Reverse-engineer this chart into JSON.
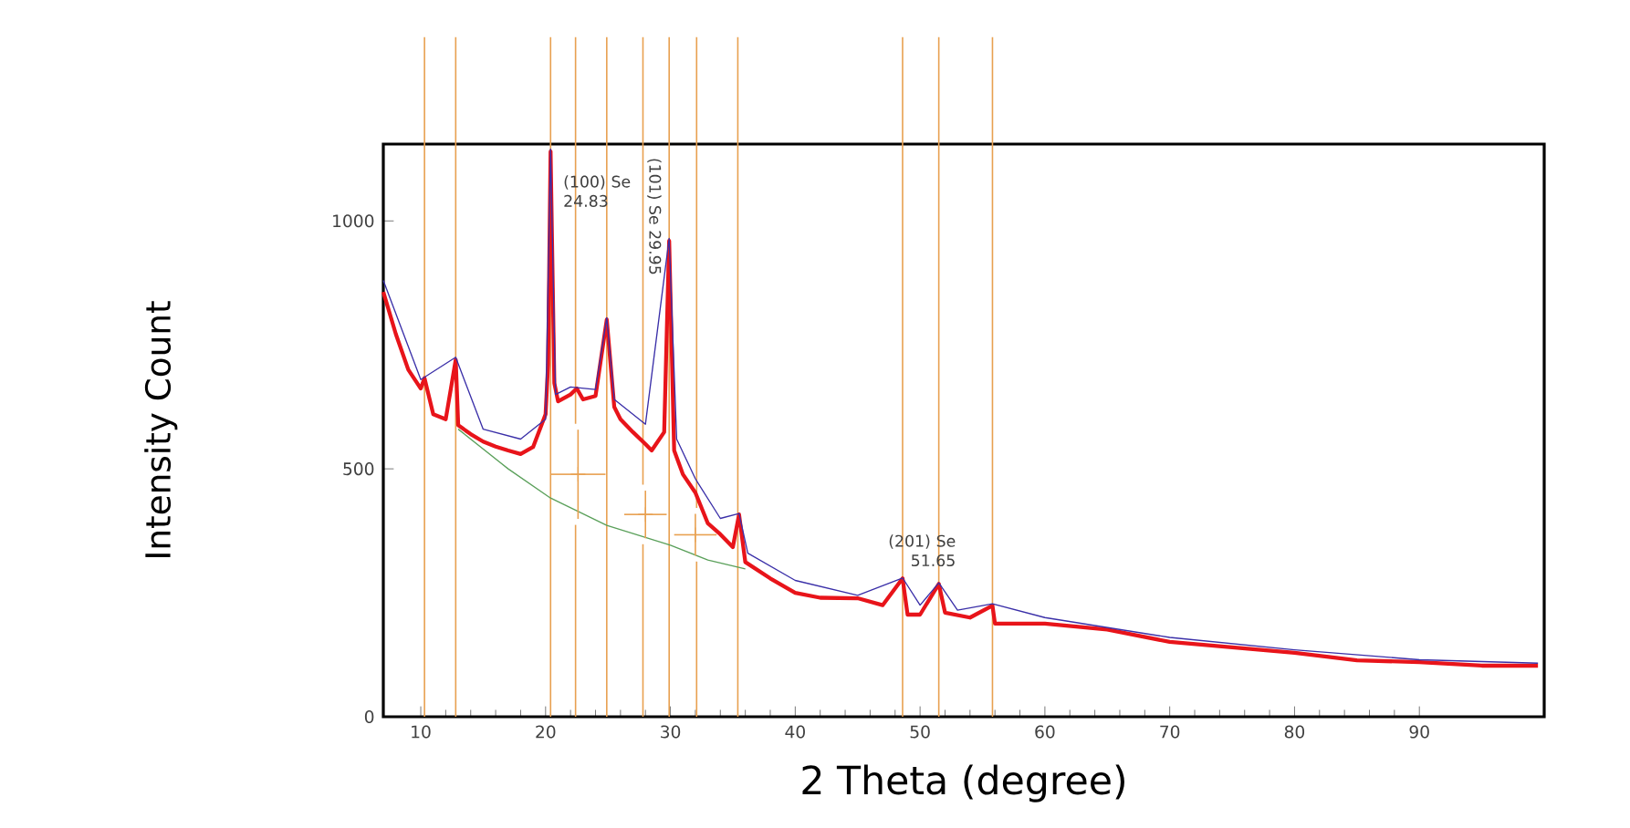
{
  "chart_data": {
    "type": "line",
    "xlabel": "2 Theta (degree)",
    "ylabel": "Intensity Count",
    "xlim": [
      7,
      100
    ],
    "ylim": [
      0,
      1155
    ],
    "xticks": [
      10,
      20,
      30,
      40,
      50,
      60,
      70,
      80,
      90
    ],
    "yticks": [
      0,
      500,
      1000
    ],
    "grid": false,
    "marker": "none",
    "line_style": "solid",
    "series": [
      {
        "color": "#e8141a",
        "x": [
          7,
          8,
          9,
          10,
          10.3,
          11,
          12,
          12.8,
          13,
          14,
          15,
          16,
          17,
          18,
          19,
          20,
          20.2,
          20.4,
          20.7,
          21,
          22,
          22.5,
          23,
          24,
          24.9,
          25.5,
          26,
          27,
          28,
          28.5,
          29.5,
          29.9,
          30.3,
          31,
          32,
          33,
          34,
          35,
          35.5,
          36,
          38,
          40,
          42,
          45,
          47,
          48.6,
          49,
          50,
          51.5,
          52,
          54,
          55.8,
          56,
          60,
          65,
          70,
          75,
          80,
          85,
          90,
          95,
          99.5
        ],
        "values": [
          857,
          772,
          700,
          662,
          683,
          610,
          600,
          720,
          588,
          570,
          555,
          545,
          537,
          530,
          544,
          610,
          710,
          1140,
          673,
          636,
          650,
          662,
          640,
          647,
          801,
          625,
          600,
          574,
          550,
          537,
          574,
          960,
          537,
          489,
          452,
          390,
          368,
          342,
          408,
          312,
          279,
          250,
          240,
          239,
          225,
          279,
          206,
          206,
          268,
          210,
          200,
          224,
          188,
          188,
          176,
          151,
          140,
          129,
          114,
          110,
          103,
          103
        ]
      },
      {
        "color": "#3a2fa8",
        "x": [
          7,
          10,
          12.8,
          15,
          18,
          20,
          20.4,
          20.8,
          22,
          24,
          24.9,
          25.5,
          28,
          29.9,
          30.5,
          32,
          34,
          35.5,
          36.2,
          40,
          45,
          48.6,
          50,
          51.5,
          53,
          55.8,
          60,
          70,
          80,
          90,
          99.5
        ],
        "values": [
          880,
          680,
          725,
          580,
          560,
          600,
          1145,
          650,
          665,
          660,
          805,
          640,
          590,
          965,
          560,
          480,
          400,
          410,
          330,
          275,
          245,
          280,
          225,
          270,
          215,
          228,
          200,
          160,
          135,
          115,
          108
        ]
      },
      {
        "color": "#5aa05a",
        "x": [
          13,
          17,
          20.4,
          24.9,
          30,
          33,
          36
        ],
        "values": [
          580,
          500,
          441,
          386,
          346,
          316,
          298
        ]
      },
      {
        "type": "scatter",
        "marker": "cross",
        "color": "#e8a050",
        "x": [
          22.6,
          28,
          32.0
        ],
        "values": [
          489,
          408,
          367
        ],
        "xerrors": [
          2.2,
          1.7,
          1.7
        ],
        "errors": [
          90,
          48,
          42
        ]
      }
    ],
    "ref_lines": [
      {
        "axis": "x",
        "value": 10.3,
        "color": "#e8a050"
      },
      {
        "axis": "x",
        "value": 12.8,
        "color": "#e8a050"
      },
      {
        "axis": "x",
        "value": 20.4,
        "color": "#e8a050"
      },
      {
        "axis": "x",
        "value": 22.4,
        "color": "#e8a050"
      },
      {
        "axis": "x",
        "value": 24.9,
        "color": "#e8a050"
      },
      {
        "axis": "x",
        "value": 27.8,
        "color": "#e8a050"
      },
      {
        "axis": "x",
        "value": 29.9,
        "color": "#e8a050"
      },
      {
        "axis": "x",
        "value": 32.1,
        "color": "#e8a050"
      },
      {
        "axis": "x",
        "value": 35.4,
        "color": "#e8a050"
      },
      {
        "axis": "x",
        "value": 48.6,
        "color": "#e8a050"
      },
      {
        "axis": "x",
        "value": 51.5,
        "color": "#e8a050"
      },
      {
        "axis": "x",
        "value": 55.8,
        "color": "#e8a050"
      }
    ],
    "annotations": [
      {
        "text": "(100) Se 24.83",
        "x": 20.4,
        "y": 1140
      },
      {
        "text": "(101) Se 29.95",
        "x": 29.9,
        "y": 960
      },
      {
        "text": "(201) Se 51.65",
        "x": 51.5,
        "y": 268
      }
    ]
  }
}
